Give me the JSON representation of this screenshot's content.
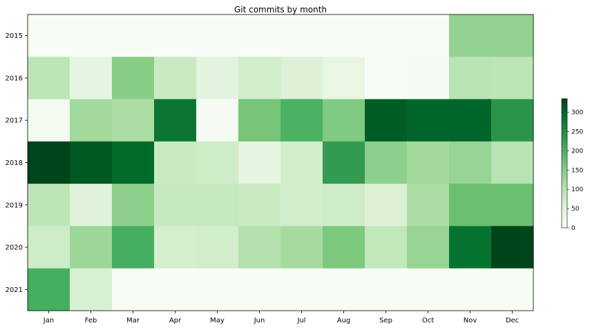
{
  "chart_data": {
    "type": "heatmap",
    "title": "Git commits by month",
    "xlabel": "",
    "ylabel": "",
    "x_categories": [
      "Jan",
      "Feb",
      "Mar",
      "Apr",
      "May",
      "Jun",
      "Jul",
      "Aug",
      "Sep",
      "Oct",
      "Nov",
      "Dec"
    ],
    "y_categories": [
      "2015",
      "2016",
      "2017",
      "2018",
      "2019",
      "2020",
      "2021"
    ],
    "values": [
      [
        0,
        0,
        0,
        0,
        0,
        0,
        0,
        0,
        0,
        0,
        140,
        140
      ],
      [
        95,
        40,
        150,
        80,
        45,
        70,
        55,
        35,
        0,
        5,
        100,
        95
      ],
      [
        10,
        125,
        115,
        280,
        5,
        165,
        200,
        155,
        310,
        300,
        300,
        240
      ],
      [
        335,
        315,
        295,
        80,
        75,
        40,
        70,
        230,
        145,
        125,
        135,
        100
      ],
      [
        95,
        50,
        145,
        85,
        85,
        80,
        70,
        75,
        55,
        115,
        175,
        175
      ],
      [
        75,
        130,
        205,
        65,
        70,
        105,
        120,
        160,
        90,
        135,
        285,
        335
      ],
      [
        205,
        60,
        0,
        0,
        0,
        0,
        0,
        0,
        0,
        0,
        0,
        0
      ]
    ],
    "colormap": "Greens",
    "colorbar": {
      "range": [
        0,
        335
      ],
      "ticks": [
        0,
        50,
        100,
        150,
        200,
        250,
        300
      ]
    },
    "grid": false,
    "legend": "colorbar-right"
  }
}
